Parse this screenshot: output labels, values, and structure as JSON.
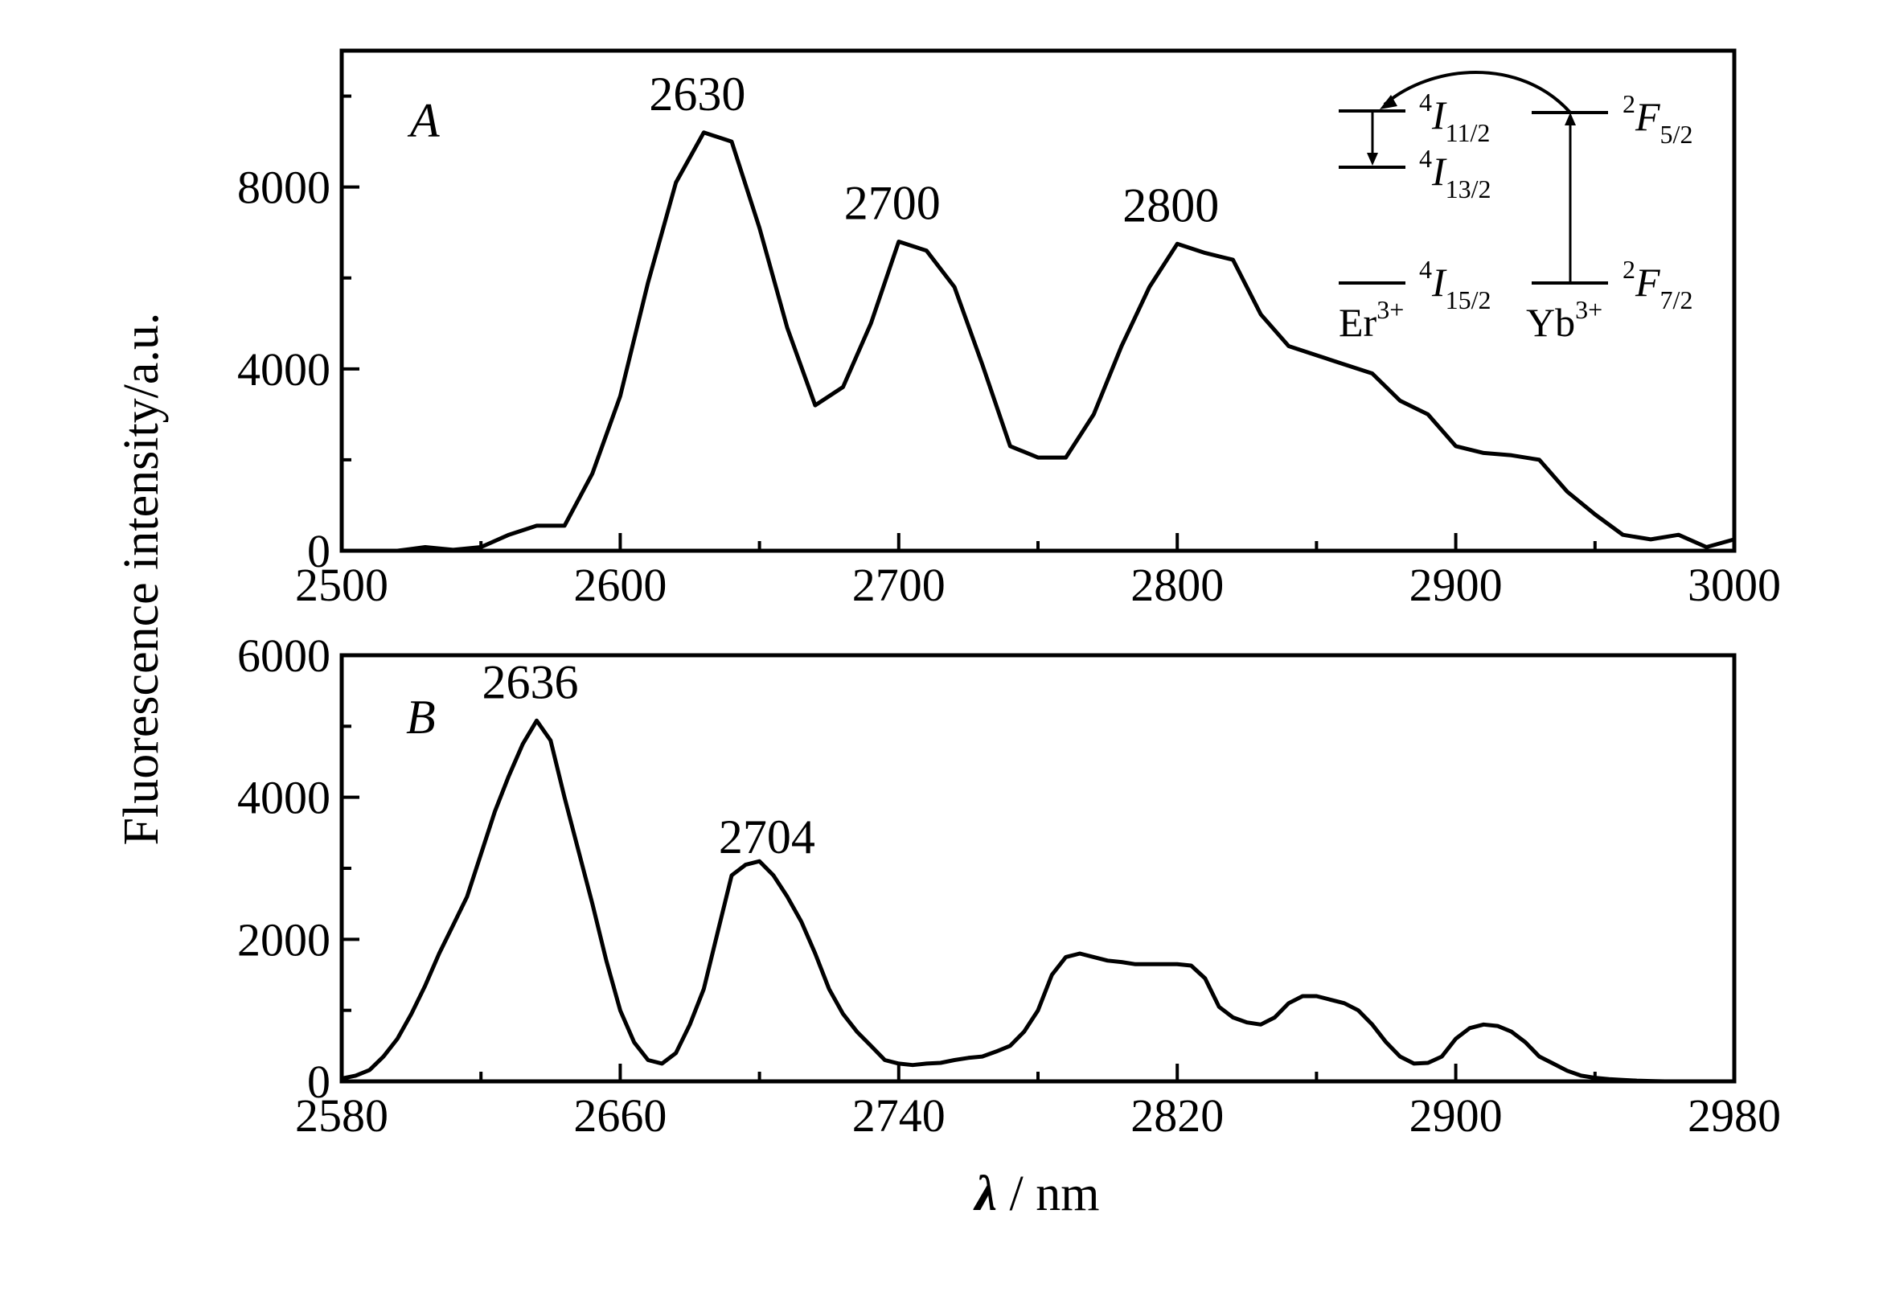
{
  "ylabel": "Fluorescence intensity/a.u.",
  "xlabel": {
    "symbol": "λ",
    "unit": " / nm"
  },
  "chart_data": [
    {
      "type": "line",
      "panel_label": "A",
      "xlim": [
        2500,
        3000
      ],
      "ylim": [
        0,
        11000
      ],
      "xticks": [
        2500,
        2600,
        2700,
        2800,
        2900,
        3000
      ],
      "yticks": [
        0,
        4000,
        8000
      ],
      "x": [
        2500,
        2520,
        2530,
        2540,
        2550,
        2560,
        2570,
        2580,
        2590,
        2600,
        2610,
        2620,
        2630,
        2640,
        2650,
        2660,
        2670,
        2680,
        2690,
        2700,
        2710,
        2720,
        2730,
        2740,
        2750,
        2760,
        2770,
        2780,
        2790,
        2800,
        2810,
        2820,
        2830,
        2840,
        2850,
        2860,
        2870,
        2880,
        2890,
        2900,
        2910,
        2920,
        2930,
        2940,
        2950,
        2960,
        2970,
        2980,
        2990,
        3000
      ],
      "y": [
        0,
        0,
        80,
        20,
        80,
        350,
        550,
        550,
        1700,
        3400,
        5900,
        8100,
        9200,
        9000,
        7100,
        4900,
        3200,
        3600,
        5000,
        6800,
        6600,
        5800,
        4100,
        2300,
        2050,
        2050,
        3000,
        4500,
        5800,
        6750,
        6550,
        6400,
        5200,
        4500,
        4300,
        4100,
        3900,
        3300,
        3000,
        2300,
        2150,
        2100,
        2000,
        1300,
        800,
        350,
        250,
        350,
        80,
        250
      ],
      "peaks": [
        {
          "x": 2630,
          "label": "2630"
        },
        {
          "x": 2700,
          "label": "2700"
        },
        {
          "x": 2800,
          "label": "2800"
        }
      ],
      "inset": {
        "er": {
          "ion": "Er",
          "charge": "3+",
          "levels": [
            {
              "sup": "4",
              "term": "I",
              "sub": "11/2"
            },
            {
              "sup": "4",
              "term": "I",
              "sub": "13/2"
            },
            {
              "sup": "4",
              "term": "I",
              "sub": "15/2"
            }
          ]
        },
        "yb": {
          "ion": "Yb",
          "charge": "3+",
          "levels": [
            {
              "sup": "2",
              "term": "F",
              "sub": "5/2"
            },
            {
              "sup": "2",
              "term": "F",
              "sub": "7/2"
            }
          ]
        }
      }
    },
    {
      "type": "line",
      "panel_label": "B",
      "xlim": [
        2580,
        2980
      ],
      "ylim": [
        0,
        6000
      ],
      "xticks": [
        2580,
        2660,
        2740,
        2820,
        2900,
        2980
      ],
      "yticks": [
        0,
        2000,
        4000,
        6000
      ],
      "x": [
        2580,
        2584,
        2588,
        2592,
        2596,
        2600,
        2604,
        2608,
        2612,
        2616,
        2620,
        2624,
        2628,
        2632,
        2636,
        2640,
        2644,
        2648,
        2652,
        2656,
        2660,
        2664,
        2668,
        2672,
        2676,
        2680,
        2684,
        2688,
        2692,
        2696,
        2700,
        2704,
        2708,
        2712,
        2716,
        2720,
        2724,
        2728,
        2732,
        2736,
        2740,
        2744,
        2748,
        2752,
        2756,
        2760,
        2764,
        2768,
        2772,
        2776,
        2780,
        2784,
        2788,
        2792,
        2796,
        2800,
        2804,
        2808,
        2812,
        2816,
        2820,
        2824,
        2828,
        2832,
        2836,
        2840,
        2844,
        2848,
        2852,
        2856,
        2860,
        2864,
        2868,
        2872,
        2876,
        2880,
        2884,
        2888,
        2892,
        2896,
        2900,
        2904,
        2908,
        2912,
        2916,
        2920,
        2924,
        2928,
        2932,
        2936,
        2940,
        2944,
        2948,
        2952,
        2956,
        2960,
        2964,
        2968,
        2972,
        2976,
        2980
      ],
      "y": [
        40,
        80,
        160,
        350,
        600,
        950,
        1350,
        1800,
        2200,
        2600,
        3200,
        3800,
        4300,
        4750,
        5080,
        4800,
        4000,
        3250,
        2500,
        1700,
        1000,
        550,
        300,
        250,
        400,
        800,
        1300,
        2100,
        2900,
        3050,
        3100,
        2900,
        2600,
        2250,
        1800,
        1300,
        950,
        700,
        500,
        300,
        250,
        230,
        250,
        260,
        300,
        330,
        350,
        420,
        500,
        700,
        1000,
        1500,
        1750,
        1800,
        1750,
        1700,
        1680,
        1650,
        1650,
        1650,
        1650,
        1630,
        1450,
        1050,
        900,
        830,
        800,
        900,
        1100,
        1200,
        1200,
        1150,
        1100,
        1000,
        800,
        550,
        350,
        250,
        260,
        350,
        600,
        750,
        800,
        780,
        700,
        550,
        350,
        250,
        150,
        80,
        50,
        30,
        20,
        10,
        5,
        0,
        0,
        0,
        0,
        0,
        0
      ],
      "peaks": [
        {
          "x": 2636,
          "label": "2636"
        },
        {
          "x": 2704,
          "label": "2704"
        }
      ]
    }
  ]
}
